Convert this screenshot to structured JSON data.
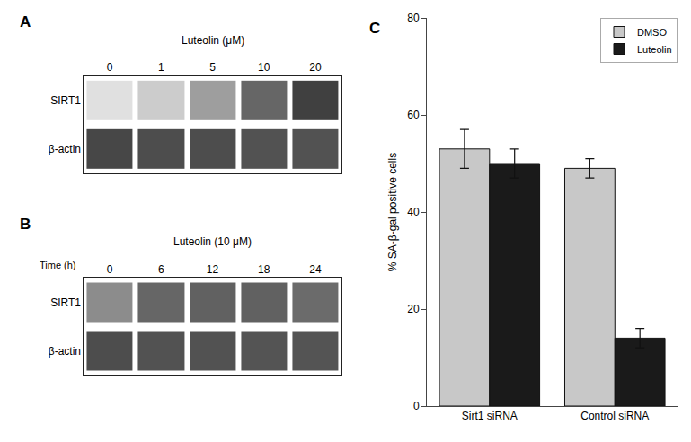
{
  "chart_data": [
    {
      "type": "heatmap",
      "title": "Luteolin (μM)",
      "annotations": [
        "A"
      ],
      "categories": [
        "0",
        "1",
        "5",
        "10",
        "20"
      ],
      "rows": [
        "SIRT1",
        "β-actin"
      ],
      "cells": [
        [
          0.88,
          0.8,
          0.62,
          0.4,
          0.25
        ],
        [
          0.28,
          0.3,
          0.3,
          0.32,
          0.32
        ]
      ],
      "zlim": [
        0,
        1
      ]
    },
    {
      "type": "heatmap",
      "title": "Luteolin (10 μM)",
      "annotations": [
        "B"
      ],
      "xlabel": "Time (h)",
      "categories": [
        "0",
        "6",
        "12",
        "18",
        "24"
      ],
      "rows": [
        "SIRT1",
        "β-actin"
      ],
      "cells": [
        [
          0.55,
          0.4,
          0.38,
          0.38,
          0.42
        ],
        [
          0.3,
          0.32,
          0.32,
          0.33,
          0.33
        ]
      ],
      "zlim": [
        0,
        1
      ]
    },
    {
      "type": "bar",
      "annotations": [
        "C"
      ],
      "categories": [
        "Sirt1 siRNA",
        "Control siRNA"
      ],
      "series": [
        {
          "name": "DMSO",
          "color": "#c8c8c8",
          "values": [
            53,
            49
          ],
          "errors": [
            4,
            2
          ]
        },
        {
          "name": "Luteolin",
          "color": "#1a1a1a",
          "values": [
            50,
            14
          ],
          "errors": [
            3,
            2
          ]
        }
      ],
      "ylabel": "% SA-β-gal positive cells",
      "ylim": [
        0,
        80
      ],
      "yticks": [
        0,
        20,
        40,
        60,
        80
      ],
      "legend": "upper right",
      "grid": false
    }
  ]
}
